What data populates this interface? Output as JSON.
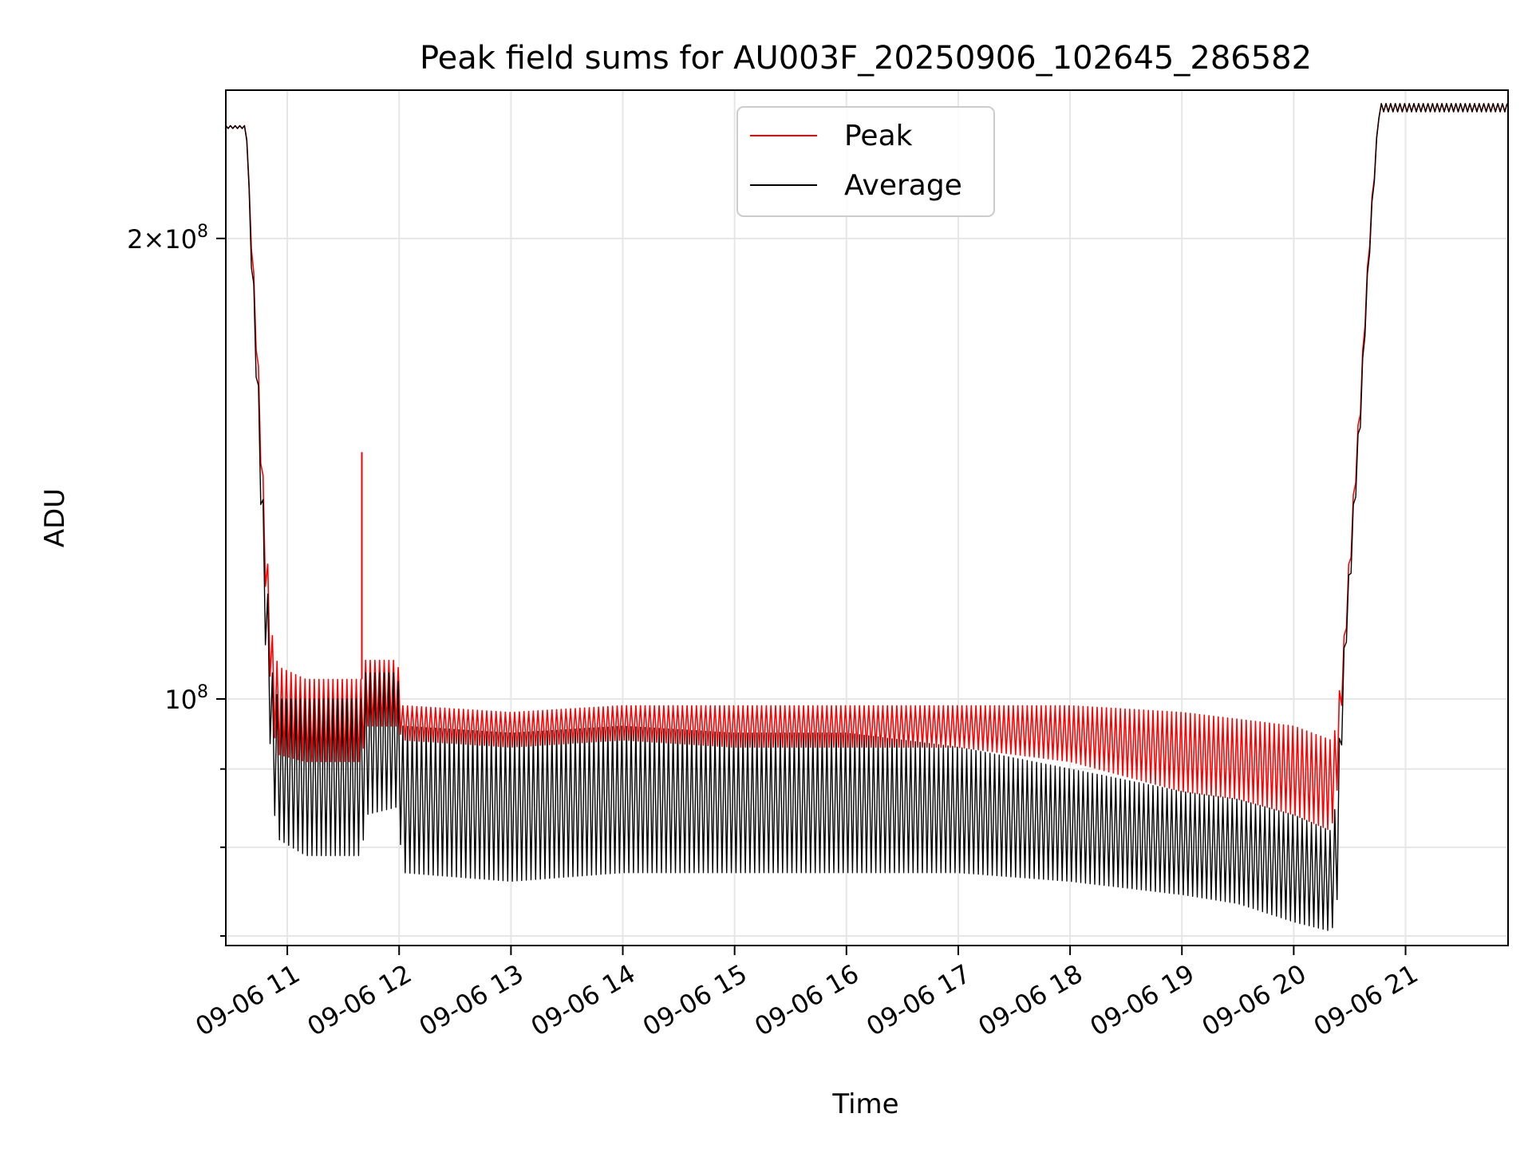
{
  "chart_data": {
    "type": "line",
    "title": "Peak field sums for AU003F_20250906_102645_286582",
    "xlabel": "Time",
    "ylabel": "ADU",
    "yscale": "log",
    "ylim": [
      69000000,
      250000000
    ],
    "xlim": [
      "2025-09-06 10:27",
      "2025-09-06 21:55"
    ],
    "grid": true,
    "legend_position": "top-center",
    "x_ticks": [
      "09-06 11",
      "09-06 12",
      "09-06 13",
      "09-06 14",
      "09-06 15",
      "09-06 16",
      "09-06 17",
      "09-06 18",
      "09-06 19",
      "09-06 20",
      "09-06 21"
    ],
    "y_ticks": [
      {
        "value": 100000000,
        "base": "10",
        "exponent": "8",
        "prefix": ""
      },
      {
        "value": 200000000,
        "base": "10",
        "exponent": "8",
        "prefix": "2×"
      }
    ],
    "series": [
      {
        "name": "Peak",
        "color": "#ff0000",
        "envelope": [
          {
            "t": "2025-09-06 10:27",
            "high": 237000000,
            "low": 236000000
          },
          {
            "t": "2025-09-06 10:38",
            "high": 237000000,
            "low": 236000000
          },
          {
            "t": "2025-09-06 10:40",
            "high": 210000000,
            "low": 205000000
          },
          {
            "t": "2025-09-06 10:45",
            "high": 160000000,
            "low": 150000000
          },
          {
            "t": "2025-09-06 10:48",
            "high": 130000000,
            "low": 120000000
          },
          {
            "t": "2025-09-06 10:52",
            "high": 110000000,
            "low": 96000000
          },
          {
            "t": "2025-09-06 10:55",
            "high": 105000000,
            "low": 92000000
          },
          {
            "t": "2025-09-06 11:10",
            "high": 103000000,
            "low": 91000000
          },
          {
            "t": "2025-09-06 11:40",
            "high": 103000000,
            "low": 91000000
          },
          {
            "t": "2025-09-06 11:42",
            "high": 106000000,
            "low": 96000000
          },
          {
            "t": "2025-09-06 11:59",
            "high": 106000000,
            "low": 96000000
          },
          {
            "t": "2025-09-06 12:02",
            "high": 99000000,
            "low": 94000000
          },
          {
            "t": "2025-09-06 13:00",
            "high": 98000000,
            "low": 93000000
          },
          {
            "t": "2025-09-06 14:00",
            "high": 99000000,
            "low": 94000000
          },
          {
            "t": "2025-09-06 15:00",
            "high": 99000000,
            "low": 93000000
          },
          {
            "t": "2025-09-06 16:00",
            "high": 99000000,
            "low": 93000000
          },
          {
            "t": "2025-09-06 17:00",
            "high": 99000000,
            "low": 93000000
          },
          {
            "t": "2025-09-06 18:00",
            "high": 99000000,
            "low": 91000000
          },
          {
            "t": "2025-09-06 19:00",
            "high": 98000000,
            "low": 87000000
          },
          {
            "t": "2025-09-06 19:30",
            "high": 97000000,
            "low": 86000000
          },
          {
            "t": "2025-09-06 20:00",
            "high": 96000000,
            "low": 84000000
          },
          {
            "t": "2025-09-06 20:20",
            "high": 94000000,
            "low": 82000000
          },
          {
            "t": "2025-09-06 20:23",
            "high": 96000000,
            "low": 86000000
          },
          {
            "t": "2025-09-06 20:27",
            "high": 110000000,
            "low": 105000000
          },
          {
            "t": "2025-09-06 20:31",
            "high": 130000000,
            "low": 125000000
          },
          {
            "t": "2025-09-06 20:36",
            "high": 160000000,
            "low": 155000000
          },
          {
            "t": "2025-09-06 20:41",
            "high": 205000000,
            "low": 200000000
          },
          {
            "t": "2025-09-06 20:46",
            "high": 245000000,
            "low": 242000000
          },
          {
            "t": "2025-09-06 21:55",
            "high": 245000000,
            "low": 242000000
          }
        ],
        "spikes": [
          {
            "t": "2025-09-06 11:40",
            "value": 145000000
          }
        ]
      },
      {
        "name": "Average",
        "color": "#000000",
        "envelope": [
          {
            "t": "2025-09-06 10:27",
            "high": 237000000,
            "low": 236000000
          },
          {
            "t": "2025-09-06 10:38",
            "high": 237000000,
            "low": 236000000
          },
          {
            "t": "2025-09-06 10:40",
            "high": 208000000,
            "low": 200000000
          },
          {
            "t": "2025-09-06 10:45",
            "high": 155000000,
            "low": 142000000
          },
          {
            "t": "2025-09-06 10:48",
            "high": 125000000,
            "low": 110000000
          },
          {
            "t": "2025-09-06 10:52",
            "high": 104000000,
            "low": 86000000
          },
          {
            "t": "2025-09-06 10:55",
            "high": 100000000,
            "low": 81000000
          },
          {
            "t": "2025-09-06 11:10",
            "high": 100000000,
            "low": 79000000
          },
          {
            "t": "2025-09-06 11:40",
            "high": 100000000,
            "low": 79000000
          },
          {
            "t": "2025-09-06 11:42",
            "high": 104000000,
            "low": 84000000
          },
          {
            "t": "2025-09-06 11:59",
            "high": 104000000,
            "low": 85000000
          },
          {
            "t": "2025-09-06 12:02",
            "high": 96000000,
            "low": 77000000
          },
          {
            "t": "2025-09-06 13:00",
            "high": 95000000,
            "low": 76000000
          },
          {
            "t": "2025-09-06 14:00",
            "high": 96000000,
            "low": 77000000
          },
          {
            "t": "2025-09-06 15:00",
            "high": 95000000,
            "low": 77000000
          },
          {
            "t": "2025-09-06 16:00",
            "high": 95000000,
            "low": 77000000
          },
          {
            "t": "2025-09-06 17:00",
            "high": 93000000,
            "low": 77000000
          },
          {
            "t": "2025-09-06 18:00",
            "high": 90000000,
            "low": 76000000
          },
          {
            "t": "2025-09-06 19:00",
            "high": 87000000,
            "low": 74500000
          },
          {
            "t": "2025-09-06 19:30",
            "high": 86000000,
            "low": 73500000
          },
          {
            "t": "2025-09-06 20:00",
            "high": 84000000,
            "low": 71500000
          },
          {
            "t": "2025-09-06 20:20",
            "high": 82000000,
            "low": 70500000
          },
          {
            "t": "2025-09-06 20:23",
            "high": 86000000,
            "low": 72000000
          },
          {
            "t": "2025-09-06 20:27",
            "high": 108000000,
            "low": 103000000
          },
          {
            "t": "2025-09-06 20:31",
            "high": 128000000,
            "low": 122000000
          },
          {
            "t": "2025-09-06 20:36",
            "high": 158000000,
            "low": 152000000
          },
          {
            "t": "2025-09-06 20:41",
            "high": 203000000,
            "low": 198000000
          },
          {
            "t": "2025-09-06 20:46",
            "high": 245000000,
            "low": 242000000
          },
          {
            "t": "2025-09-06 21:55",
            "high": 245000000,
            "low": 242000000
          }
        ],
        "spikes": []
      }
    ]
  }
}
